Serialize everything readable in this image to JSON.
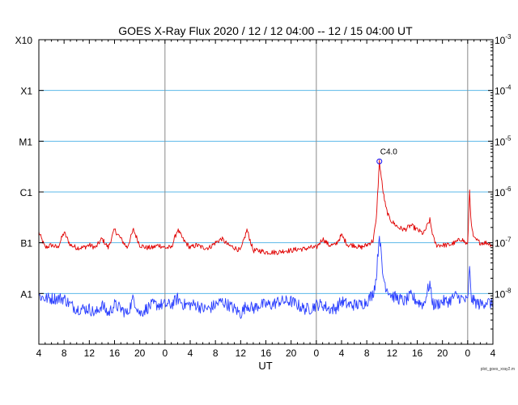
{
  "chart_data": {
    "type": "line",
    "title": "GOES X-Ray Flux   2020 / 12 / 12   04:00 -- 12 / 15   04:00   UT",
    "xlabel": "UT",
    "credit": "plot_goes_xray2.m",
    "x_range_hours": [
      4,
      76
    ],
    "x_tick_labels": [
      "4",
      "8",
      "12",
      "16",
      "20",
      "0",
      "4",
      "8",
      "12",
      "16",
      "20",
      "0",
      "4",
      "8",
      "12",
      "16",
      "20",
      "0",
      "4"
    ],
    "day_boundaries_hours": [
      24,
      48,
      72
    ],
    "y_scale": "log",
    "y_range": [
      1e-09,
      0.001
    ],
    "left_tick_labels": [
      "X10",
      "X1",
      "M1",
      "C1",
      "B1",
      "A1"
    ],
    "right_tick_labels": [
      {
        "base": "10",
        "exp": "-3"
      },
      {
        "base": "10",
        "exp": "-4"
      },
      {
        "base": "10",
        "exp": "-5"
      },
      {
        "base": "10",
        "exp": "-6"
      },
      {
        "base": "10",
        "exp": "-7"
      },
      {
        "base": "10",
        "exp": "-8"
      }
    ],
    "grid_levels": [
      0.0001,
      1e-05,
      1e-06,
      1e-07,
      1e-08
    ],
    "series": [
      {
        "color": "#e00000",
        "x": [
          4,
          5,
          6,
          7,
          8,
          9,
          10,
          11,
          12,
          13,
          14,
          15,
          16,
          17,
          18,
          19,
          20,
          21,
          22,
          23,
          24,
          25,
          26,
          27,
          28,
          29,
          30,
          31,
          32,
          33,
          34,
          35,
          36,
          37,
          38,
          39,
          40,
          41,
          42,
          43,
          44,
          45,
          46,
          47,
          48,
          49,
          50,
          51,
          52,
          53,
          54,
          55,
          56,
          57,
          57.5,
          58,
          58.5,
          59,
          59.5,
          60,
          61,
          62,
          63,
          64,
          65,
          66,
          66.3,
          66.6,
          67,
          68,
          69,
          70,
          71,
          72,
          72.3,
          72.6,
          73,
          74,
          75,
          76
        ],
        "y": [
          1.6e-07,
          8e-08,
          9e-08,
          8e-08,
          1.6e-07,
          9e-08,
          8e-08,
          8e-08,
          9e-08,
          8e-08,
          1.2e-07,
          8e-08,
          1.8e-07,
          1.2e-07,
          8e-08,
          1.8e-07,
          9e-08,
          8e-08,
          8e-08,
          9e-08,
          8e-08,
          8e-08,
          1.8e-07,
          1.1e-07,
          8e-08,
          9e-08,
          8e-08,
          8e-08,
          1e-07,
          1.2e-07,
          9e-08,
          8e-08,
          7e-08,
          1.8e-07,
          7e-08,
          7e-08,
          6.5e-08,
          6.5e-08,
          6.5e-08,
          7e-08,
          7e-08,
          7.5e-08,
          7.5e-08,
          8e-08,
          8e-08,
          1.2e-07,
          9e-08,
          9e-08,
          1.4e-07,
          9e-08,
          9e-08,
          8e-08,
          9e-08,
          1.1e-07,
          2.8e-07,
          4e-06,
          1.2e-06,
          5e-07,
          3.2e-07,
          2.6e-07,
          2e-07,
          1.8e-07,
          2.2e-07,
          1.8e-07,
          1.5e-07,
          2.8e-07,
          1.8e-07,
          1.2e-07,
          9e-08,
          9e-08,
          9e-08,
          1e-07,
          1.2e-07,
          9e-08,
          1.1e-06,
          2e-07,
          1.2e-07,
          1e-07,
          1e-07,
          9e-08
        ]
      },
      {
        "color": "#2a3fff",
        "x": [
          4,
          5,
          6,
          7,
          8,
          9,
          10,
          11,
          12,
          13,
          14,
          15,
          16,
          17,
          18,
          19,
          20,
          21,
          22,
          23,
          24,
          25,
          26,
          27,
          28,
          29,
          30,
          31,
          32,
          33,
          34,
          35,
          36,
          37,
          38,
          39,
          40,
          41,
          42,
          43,
          44,
          45,
          46,
          47,
          48,
          49,
          50,
          51,
          52,
          53,
          54,
          55,
          56,
          57,
          57.5,
          58,
          58.5,
          59,
          59.5,
          60,
          61,
          62,
          63,
          64,
          65,
          66,
          66.3,
          66.6,
          67,
          68,
          69,
          70,
          71,
          72,
          72.3,
          72.6,
          73,
          74,
          75,
          76
        ],
        "y": [
          9e-09,
          8e-09,
          8e-09,
          8e-09,
          8e-09,
          6e-09,
          5e-09,
          5e-09,
          5e-09,
          4e-09,
          6e-09,
          4e-09,
          6e-09,
          5e-09,
          4e-09,
          8e-09,
          4e-09,
          5e-09,
          6e-09,
          6e-09,
          6e-09,
          6e-09,
          8e-09,
          6e-09,
          6e-09,
          6e-09,
          5e-09,
          5e-09,
          6e-09,
          7e-09,
          6e-09,
          5e-09,
          4e-09,
          6e-09,
          5e-09,
          6e-09,
          6e-09,
          6e-09,
          7e-09,
          7e-09,
          7e-09,
          6e-09,
          5e-09,
          5e-09,
          6e-09,
          6e-09,
          5e-09,
          5e-09,
          7e-09,
          6e-09,
          6e-09,
          6e-09,
          7e-09,
          1e-08,
          2e-08,
          1.6e-07,
          2.5e-08,
          1.4e-08,
          1.1e-08,
          9e-09,
          8e-09,
          7e-09,
          9e-09,
          7e-09,
          6e-09,
          1.6e-08,
          8e-09,
          6e-09,
          6e-09,
          7e-09,
          7e-09,
          9e-09,
          8e-09,
          7e-09,
          3e-08,
          8e-09,
          7e-09,
          6e-09,
          7e-09,
          6e-09
        ]
      }
    ],
    "annotation": {
      "text": "C4.0",
      "x": 58,
      "y": 4e-06
    }
  }
}
